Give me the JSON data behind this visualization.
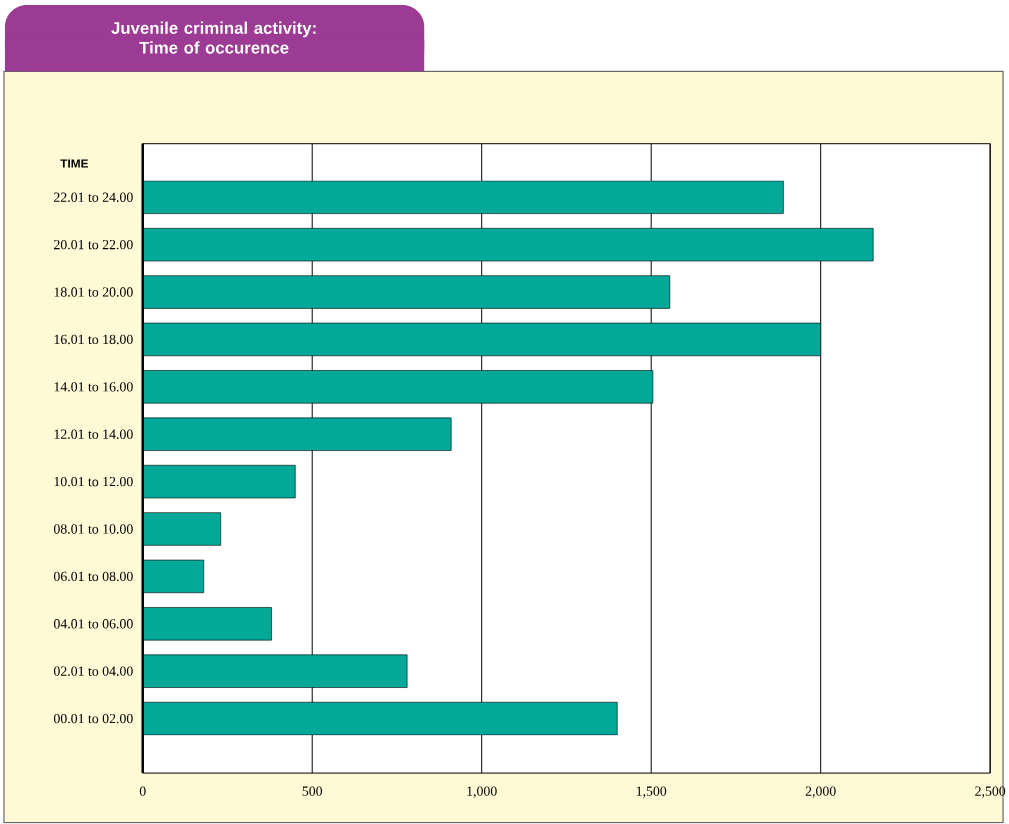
{
  "chart_data": {
    "type": "bar",
    "orientation": "horizontal",
    "title": "Juvenile criminal activity: Time of occurence",
    "ylabel": "TIME",
    "categories": [
      "22.01 to 24.00",
      "20.01 to 22.00",
      "18.01 to 20.00",
      "16.01 to 18.00",
      "14.01 to 16.00",
      "12.01 to 14.00",
      "10.01 to 12.00",
      "08.01 to 10.00",
      "06.01 to 08.00",
      "04.01 to 06.00",
      "02.01 to 04.00",
      "00.01 to 02.00"
    ],
    "values": [
      1890,
      2155,
      1555,
      2000,
      1505,
      910,
      450,
      230,
      180,
      380,
      780,
      1400
    ],
    "color": "#02a898",
    "xlim": [
      0,
      2500
    ],
    "xticks": [
      0,
      500,
      {
        "value": 1000,
        "label": "1,000"
      },
      {
        "value": 1500,
        "label": "1,500"
      },
      {
        "value": 2000,
        "label": "2,000"
      },
      {
        "value": 2500,
        "label": "2,500"
      }
    ],
    "grid": "x"
  }
}
